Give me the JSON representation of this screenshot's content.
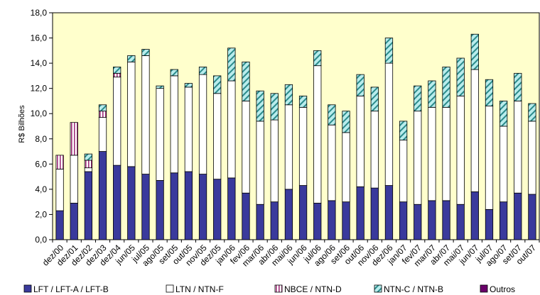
{
  "chart_data": {
    "type": "bar",
    "stacked": true,
    "ylabel": "R$ Bilhões",
    "xlabel": "",
    "title": "",
    "ylim": [
      0,
      18
    ],
    "yticks": [
      "0,0",
      "2,0",
      "4,0",
      "6,0",
      "8,0",
      "10,0",
      "12,0",
      "14,0",
      "16,0",
      "18,0"
    ],
    "legend_position": "bottom",
    "categories": [
      "dez/00",
      "dez/01",
      "dez/02",
      "dez/03",
      "dez/04",
      "jun/05",
      "jul/05",
      "ago/05",
      "set/05",
      "out/05",
      "nov/05",
      "dez/05",
      "jan/06",
      "fev/06",
      "mar/06",
      "abr/06",
      "mai/06",
      "jun/06",
      "jul/06",
      "ago/06",
      "set/06",
      "out/06",
      "nov/06",
      "dez/06",
      "jan/07",
      "fev/07",
      "mar/07",
      "abr/07",
      "mai/07",
      "jun/07",
      "jul/07",
      "ago/07",
      "set/07",
      "out/07"
    ],
    "series": [
      {
        "name": "LFT / LFT-A / LFT-B",
        "color": "#3a3a9c",
        "pattern": "solid",
        "values": [
          2.3,
          2.9,
          5.4,
          7.0,
          5.9,
          5.8,
          5.2,
          4.7,
          5.3,
          5.4,
          5.2,
          4.8,
          4.9,
          3.7,
          2.8,
          3.0,
          4.0,
          4.3,
          2.9,
          3.1,
          3.0,
          4.2,
          4.1,
          4.3,
          3.0,
          2.8,
          3.1,
          3.1,
          2.8,
          3.8,
          2.4,
          3.0,
          3.7,
          3.6
        ]
      },
      {
        "name": "LTN / NTN-F",
        "color": "#ffffff",
        "pattern": "white",
        "values": [
          3.3,
          3.8,
          0.3,
          2.7,
          7.0,
          8.3,
          9.4,
          7.3,
          7.7,
          6.7,
          7.9,
          6.8,
          7.7,
          7.3,
          6.6,
          6.5,
          6.7,
          6.2,
          10.9,
          6.0,
          5.5,
          7.2,
          6.1,
          9.7,
          4.9,
          7.4,
          7.4,
          7.4,
          8.6,
          9.7,
          8.2,
          6.0,
          7.3,
          5.8
        ]
      },
      {
        "name": "NBCE / NTN-D",
        "color": "#a0307a",
        "pattern": "vertical-stripes",
        "values": [
          1.1,
          2.6,
          0.6,
          0.5,
          0.3,
          0.0,
          0.0,
          0.0,
          0.0,
          0.0,
          0.0,
          0.0,
          0.0,
          0.0,
          0.0,
          0.0,
          0.0,
          0.0,
          0.0,
          0.0,
          0.0,
          0.0,
          0.0,
          0.0,
          0.0,
          0.0,
          0.0,
          0.0,
          0.0,
          0.0,
          0.0,
          0.0,
          0.0,
          0.0
        ]
      },
      {
        "name": "NTN-C / NTN-B",
        "color": "#7fd3d3",
        "pattern": "diagonal-stripes",
        "values": [
          0.0,
          0.0,
          0.5,
          0.5,
          0.5,
          0.5,
          0.5,
          0.2,
          0.5,
          0.3,
          0.6,
          1.4,
          2.6,
          3.1,
          2.4,
          2.1,
          1.6,
          0.9,
          1.2,
          1.6,
          1.7,
          1.7,
          1.9,
          2.0,
          1.5,
          2.0,
          2.1,
          3.2,
          3.0,
          2.8,
          2.1,
          2.0,
          2.2,
          1.4
        ]
      },
      {
        "name": "Outros",
        "color": "#6a006a",
        "pattern": "solid",
        "values": [
          0.0,
          0.0,
          0.0,
          0.0,
          0.0,
          0.0,
          0.0,
          0.0,
          0.0,
          0.0,
          0.0,
          0.0,
          0.0,
          0.0,
          0.0,
          0.0,
          0.0,
          0.0,
          0.0,
          0.0,
          0.0,
          0.0,
          0.0,
          0.0,
          0.0,
          0.0,
          0.0,
          0.0,
          0.0,
          0.0,
          0.0,
          0.0,
          0.0,
          0.0
        ]
      }
    ],
    "plot_background": "#ffffcc",
    "grid": false
  }
}
